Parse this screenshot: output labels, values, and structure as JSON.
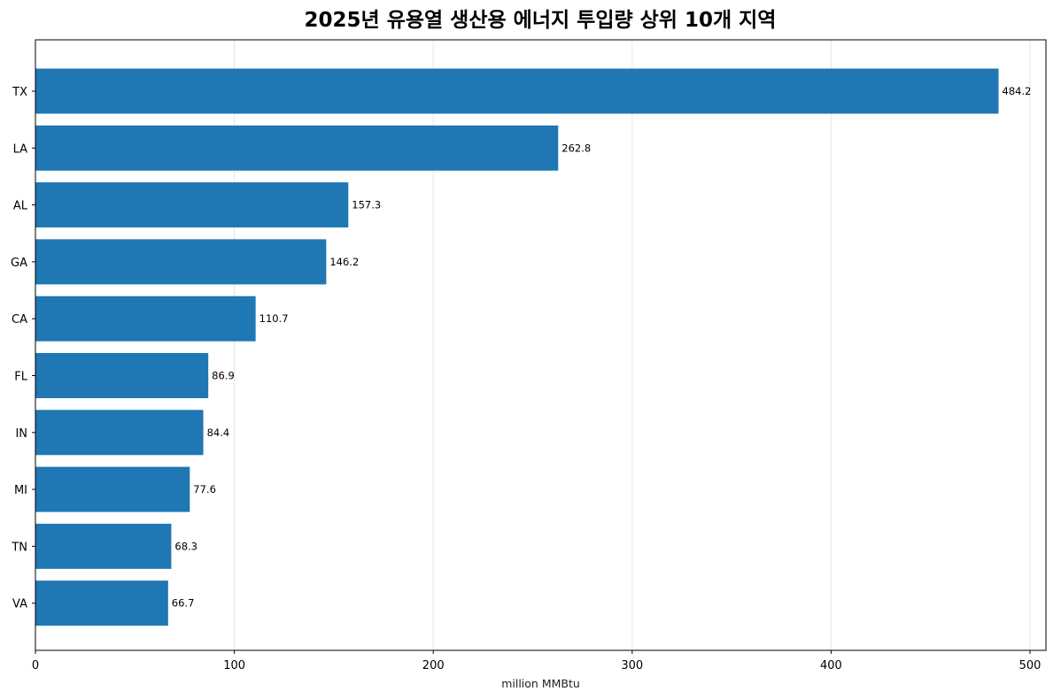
{
  "chart_data": {
    "type": "bar",
    "orientation": "horizontal",
    "title": "2025년 유용열 생산용 에너지 투입량 상위 10개 지역",
    "xlabel": "million MMBtu",
    "ylabel": "",
    "xlim": [
      0,
      508
    ],
    "xticks": [
      0,
      100,
      200,
      300,
      400,
      500
    ],
    "grid": "x",
    "bar_color": "#1f77b4",
    "categories": [
      "TX",
      "LA",
      "AL",
      "GA",
      "CA",
      "FL",
      "IN",
      "MI",
      "TN",
      "VA"
    ],
    "values": [
      484.2,
      262.8,
      157.3,
      146.2,
      110.7,
      86.9,
      84.4,
      77.6,
      68.3,
      66.7
    ],
    "value_labels": [
      "484.2",
      "262.8",
      "157.3",
      "146.2",
      "110.7",
      "86.9",
      "84.4",
      "77.6",
      "68.3",
      "66.7"
    ]
  }
}
